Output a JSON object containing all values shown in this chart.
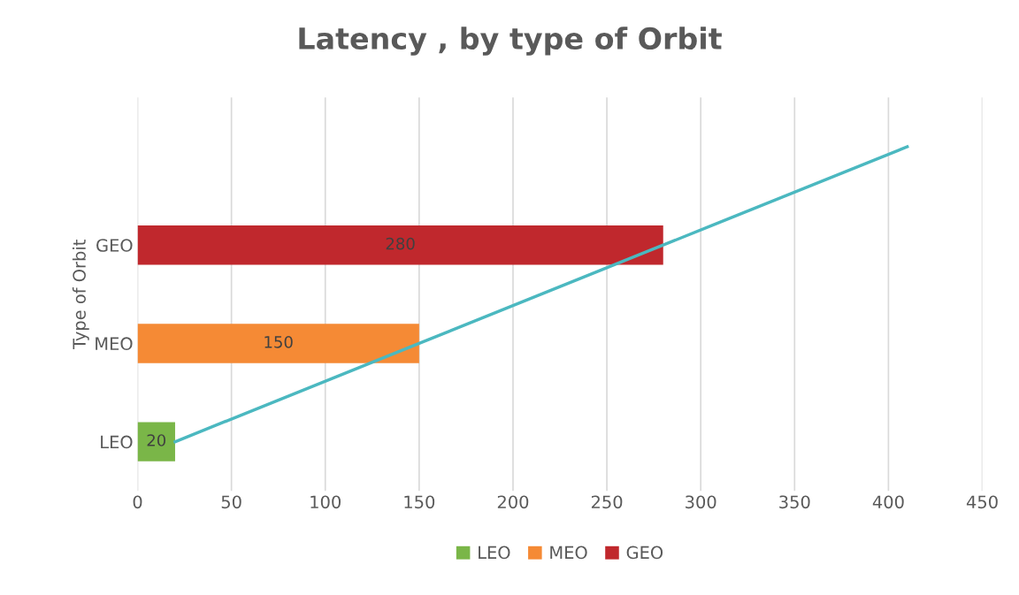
{
  "chart_data": {
    "type": "bar",
    "orientation": "horizontal",
    "stacked": true,
    "title": "Latency , by type of Orbit",
    "ylabel": "Type of Orbit",
    "categories": [
      null,
      "GEO",
      "MEO",
      "LEO"
    ],
    "series": [
      {
        "name": "LEO",
        "color": "#7ab648",
        "values": [
          null,
          null,
          null,
          20
        ],
        "value_labels": [
          null,
          null,
          null,
          "20"
        ]
      },
      {
        "name": "MEO",
        "color": "#f58a35",
        "values": [
          null,
          null,
          150,
          null
        ],
        "value_labels": [
          null,
          null,
          "150",
          null
        ]
      },
      {
        "name": "GEO",
        "color": "#c0282d",
        "values": [
          null,
          280,
          null,
          null
        ],
        "value_labels": [
          null,
          "280",
          null,
          null
        ]
      },
      {
        "type": "line",
        "color": "#4bb8c0",
        "values": [
          410,
          280,
          150,
          20
        ]
      }
    ],
    "xlim": [
      0,
      450
    ],
    "xticks": [
      0,
      50,
      100,
      150,
      200,
      250,
      300,
      350,
      400,
      450
    ],
    "grid": "x",
    "legend": "bottom"
  }
}
